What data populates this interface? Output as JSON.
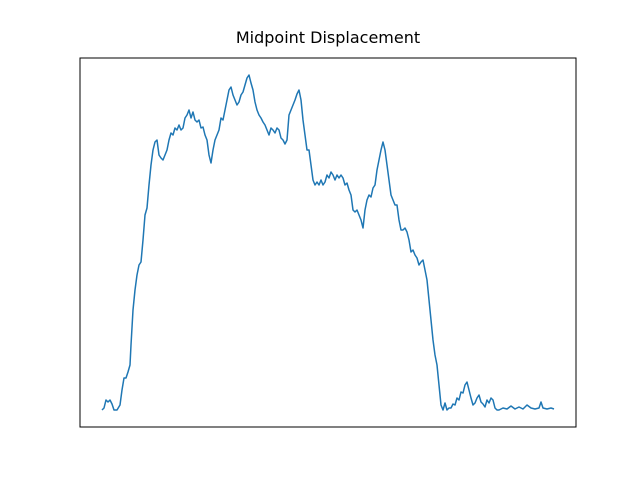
{
  "chart_data": {
    "type": "line",
    "title": "Midpoint Displacement",
    "color": "#1f77b4",
    "xlim": [
      -22,
      474
    ],
    "ylim": [
      -17,
      352
    ],
    "x": [
      0,
      2,
      4,
      6,
      8,
      10,
      12,
      15,
      18,
      20,
      22,
      24,
      26,
      28,
      29,
      31,
      33,
      35,
      37,
      39,
      41,
      43,
      45,
      47,
      49,
      51,
      53,
      55,
      57,
      59,
      61,
      63,
      65,
      67,
      69,
      71,
      73,
      75,
      77,
      79,
      81,
      83,
      85,
      87,
      89,
      91,
      93,
      95,
      97,
      99,
      101,
      103,
      105,
      107,
      109,
      111,
      113,
      115,
      117,
      119,
      121,
      123,
      125,
      127,
      129,
      131,
      133,
      135,
      137,
      139,
      141,
      143,
      145,
      147,
      149,
      151,
      153,
      155,
      157,
      159,
      161,
      163,
      165,
      167,
      169,
      171,
      173,
      175,
      177,
      179,
      181,
      183,
      185,
      187,
      189,
      191,
      193,
      195,
      197,
      199,
      201,
      203,
      205,
      207,
      209,
      211,
      213,
      215,
      217,
      219,
      221,
      223,
      225,
      227,
      229,
      231,
      233,
      235,
      237,
      239,
      241,
      243,
      245,
      247,
      249,
      251,
      253,
      255,
      257,
      259,
      261,
      263,
      265,
      267,
      269,
      271,
      273,
      275,
      277,
      279,
      281,
      283,
      285,
      287,
      289,
      291,
      293,
      295,
      297,
      299,
      301,
      303,
      305,
      307,
      309,
      311,
      313,
      315,
      317,
      319,
      321,
      323,
      325,
      327,
      329,
      331,
      333,
      335,
      337,
      339,
      341,
      343,
      345,
      347,
      349,
      351,
      353,
      355,
      357,
      359,
      361,
      363,
      365,
      367,
      369,
      371,
      373,
      375,
      377,
      379,
      381,
      383,
      385,
      387,
      389,
      391,
      393,
      395,
      397,
      401,
      405,
      409,
      413,
      417,
      421,
      425,
      429,
      433,
      437,
      439,
      441,
      445,
      449,
      452
    ],
    "values": [
      0,
      2,
      10,
      8,
      10,
      6,
      0,
      0,
      5,
      20,
      32,
      32,
      38,
      45,
      65,
      100,
      120,
      135,
      145,
      148,
      170,
      195,
      202,
      225,
      245,
      260,
      268,
      270,
      255,
      252,
      250,
      255,
      260,
      270,
      277,
      275,
      282,
      280,
      285,
      280,
      282,
      292,
      295,
      300,
      292,
      298,
      290,
      288,
      290,
      282,
      283,
      275,
      270,
      255,
      247,
      260,
      270,
      275,
      280,
      292,
      290,
      300,
      310,
      320,
      323,
      315,
      310,
      305,
      308,
      315,
      318,
      325,
      332,
      335,
      327,
      320,
      308,
      300,
      295,
      292,
      288,
      285,
      280,
      275,
      282,
      280,
      277,
      282,
      280,
      272,
      270,
      266,
      270,
      295,
      300,
      305,
      310,
      316,
      320,
      310,
      290,
      275,
      260,
      260,
      245,
      230,
      225,
      228,
      225,
      230,
      225,
      228,
      235,
      232,
      238,
      235,
      230,
      235,
      232,
      235,
      232,
      225,
      227,
      220,
      215,
      200,
      198,
      200,
      195,
      190,
      182,
      200,
      210,
      215,
      213,
      222,
      225,
      240,
      250,
      260,
      268,
      260,
      245,
      230,
      215,
      210,
      205,
      205,
      190,
      180,
      180,
      182,
      178,
      170,
      158,
      160,
      155,
      152,
      145,
      148,
      150,
      140,
      130,
      110,
      90,
      70,
      55,
      45,
      25,
      5,
      0,
      7,
      0,
      2,
      2,
      6,
      5,
      12,
      10,
      18,
      17,
      25,
      28,
      20,
      12,
      5,
      7,
      12,
      15,
      8,
      6,
      3,
      10,
      7,
      12,
      10,
      2,
      0,
      0,
      2,
      1,
      4,
      1,
      3,
      1,
      5,
      2,
      1,
      2,
      8,
      2,
      1,
      2,
      1
    ]
  }
}
